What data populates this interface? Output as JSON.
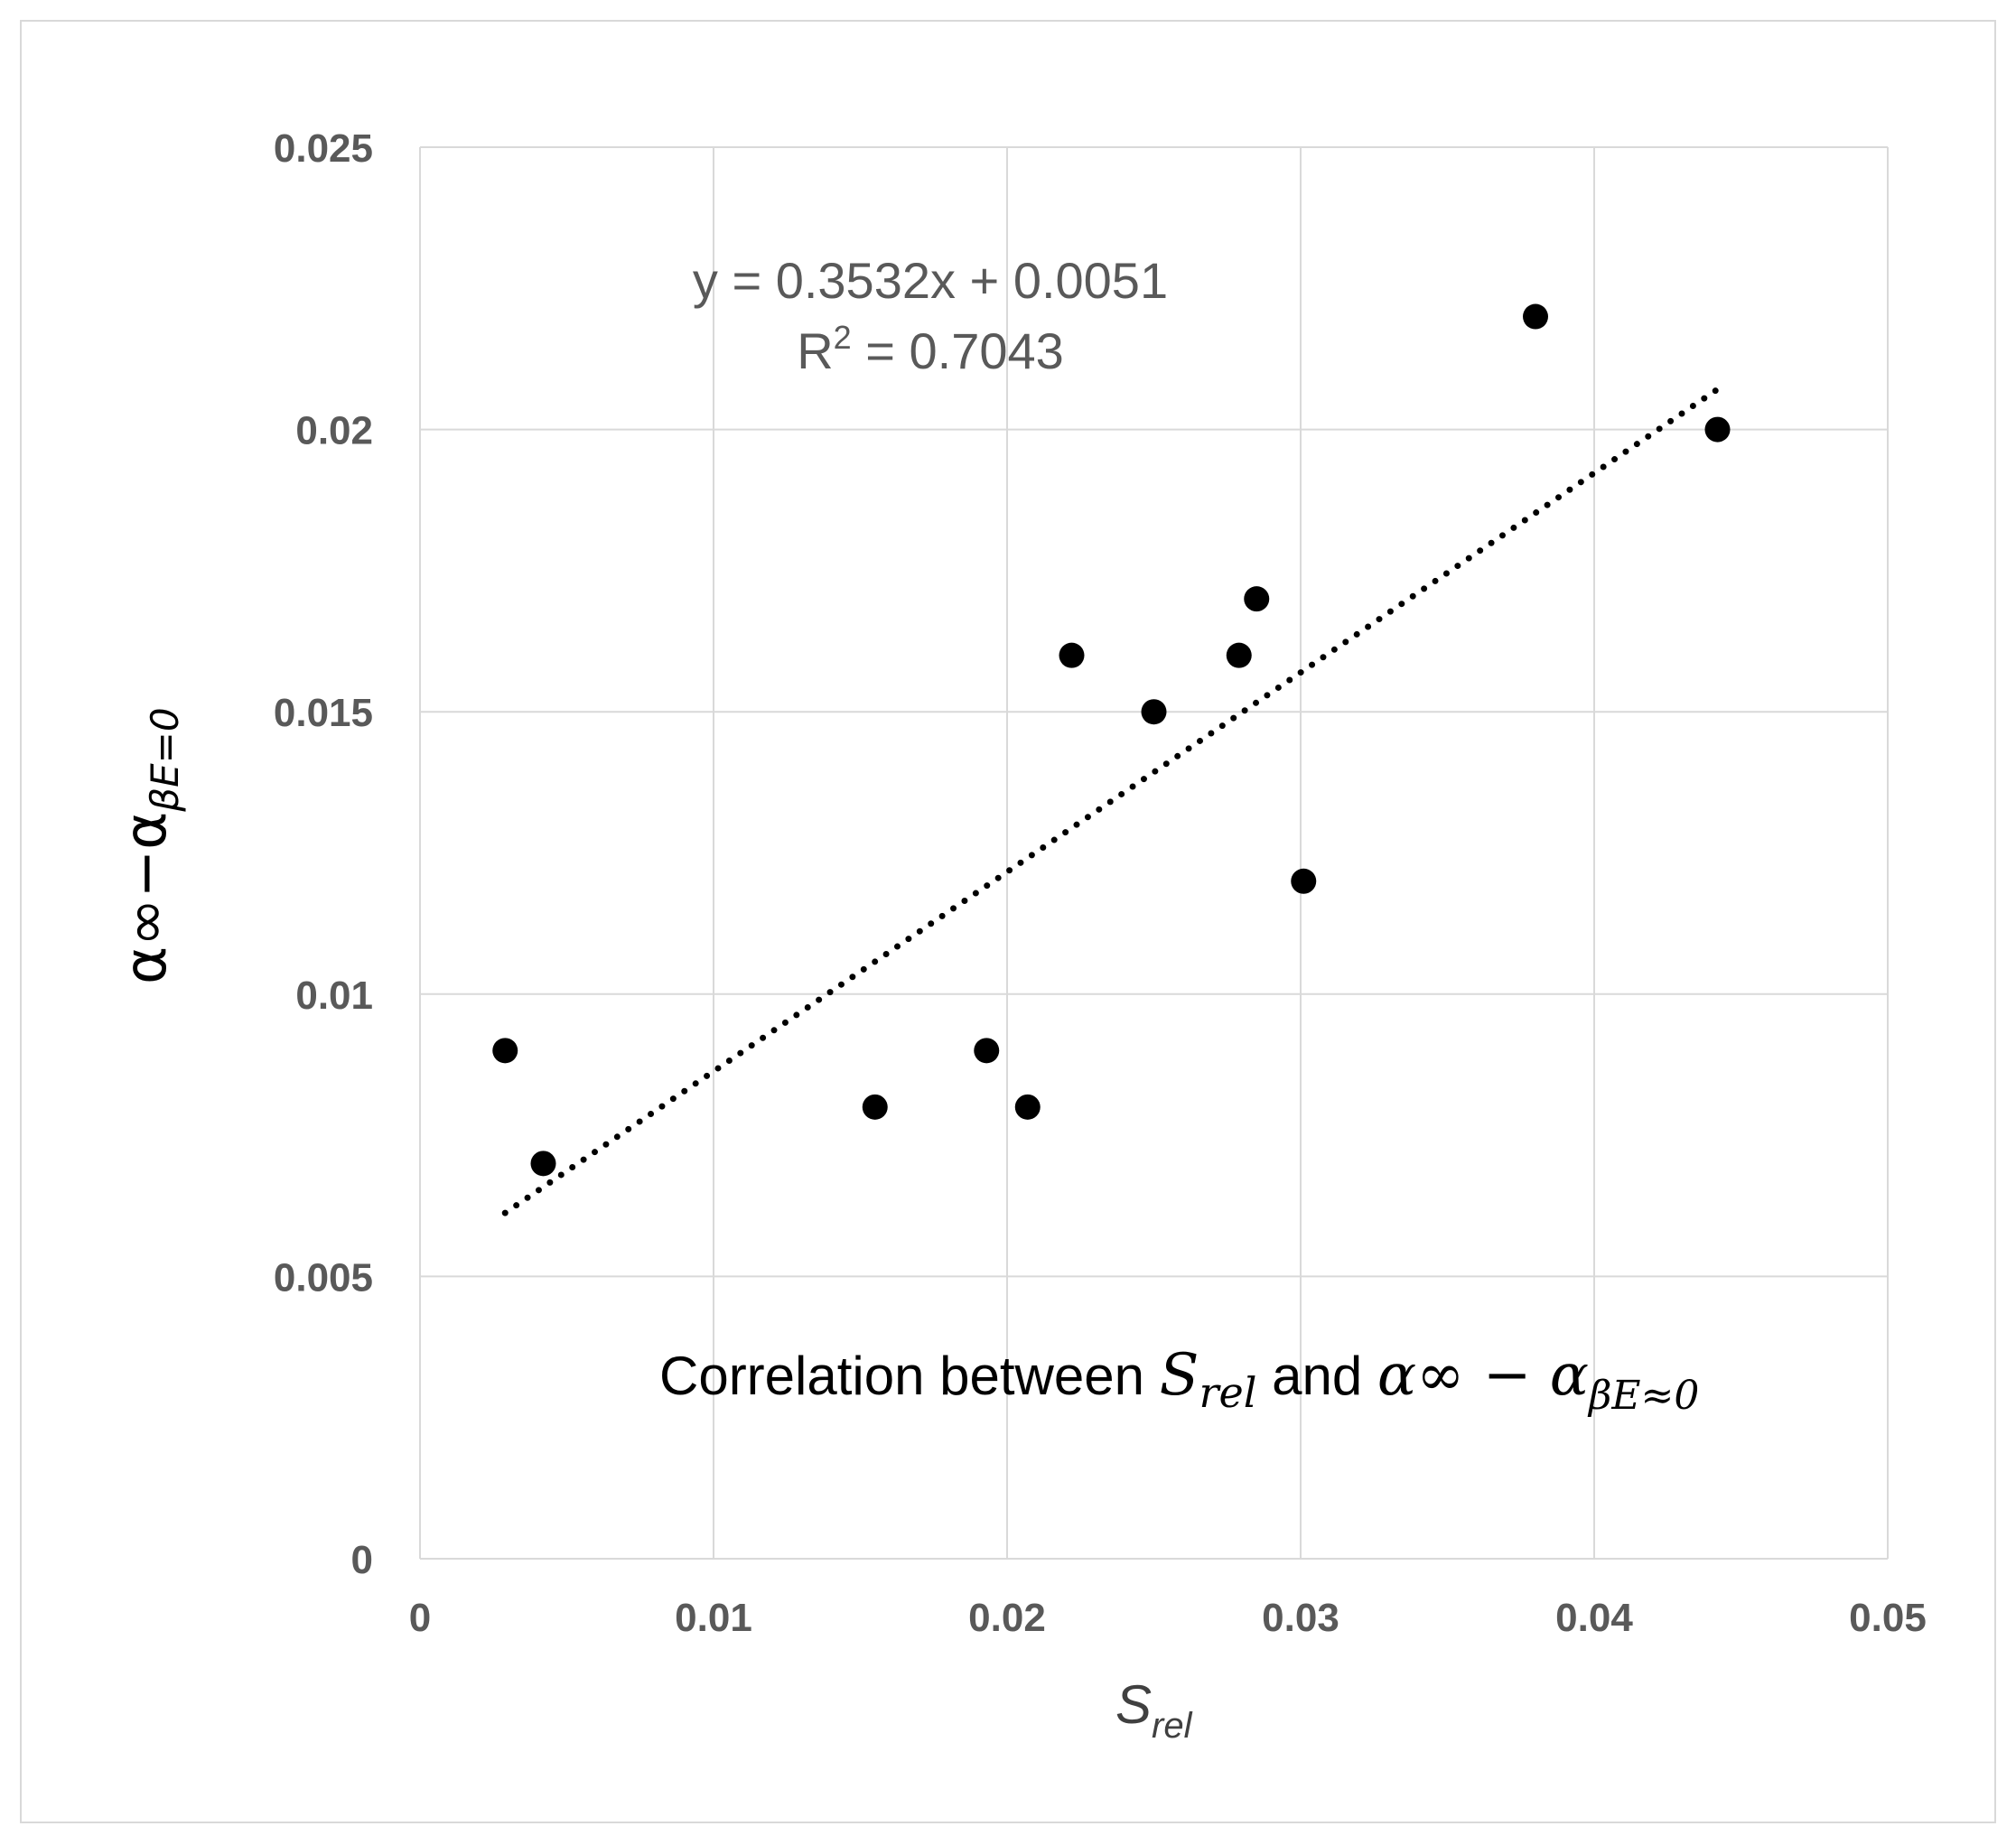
{
  "chart_data": {
    "type": "scatter",
    "title": "",
    "xlabel": {
      "base": "S",
      "sub": "rel"
    },
    "ylabel": {
      "base": "α∞−α",
      "sub": "βE=0"
    },
    "xlim": [
      0,
      0.05
    ],
    "ylim": [
      0,
      0.025
    ],
    "x_ticks": [
      0,
      0.01,
      0.02,
      0.03,
      0.04,
      0.05
    ],
    "x_tick_labels": [
      "0",
      "0.01",
      "0.02",
      "0.03",
      "0.04",
      "0.05"
    ],
    "y_ticks": [
      0,
      0.005,
      0.01,
      0.015,
      0.02,
      0.025
    ],
    "y_tick_labels": [
      "0",
      "0.005",
      "0.01",
      "0.015",
      "0.02",
      "0.025"
    ],
    "grid": true,
    "series": [
      {
        "name": "data",
        "marker": "circle",
        "color": "#000000",
        "points": [
          {
            "x": 0.0029,
            "y": 0.009
          },
          {
            "x": 0.0042,
            "y": 0.007
          },
          {
            "x": 0.0155,
            "y": 0.008
          },
          {
            "x": 0.0193,
            "y": 0.009
          },
          {
            "x": 0.0207,
            "y": 0.008
          },
          {
            "x": 0.0222,
            "y": 0.016
          },
          {
            "x": 0.025,
            "y": 0.015
          },
          {
            "x": 0.0279,
            "y": 0.016
          },
          {
            "x": 0.0285,
            "y": 0.017
          },
          {
            "x": 0.0301,
            "y": 0.012
          },
          {
            "x": 0.038,
            "y": 0.022
          },
          {
            "x": 0.0442,
            "y": 0.02
          }
        ]
      }
    ],
    "trendline": {
      "type": "linear",
      "slope": 0.3532,
      "intercept": 0.0051,
      "x_range": [
        0.0029,
        0.0442
      ],
      "style": "dotted",
      "color": "#000000",
      "equation_label": "y = 0.3532x + 0.0051",
      "r2_label_prefix": "R",
      "r2_label_sup": "2",
      "r2_label_suffix": " = 0.7043"
    },
    "annotation": {
      "prefix": "Correlation between ",
      "s_base": "S",
      "s_sub": "rel",
      "middle": " and ",
      "a_expr": "α∞ − α",
      "a_sub": "βE≈0"
    }
  },
  "colors": {
    "grid": "#d9d9d9",
    "tick_text": "#595959",
    "marker": "#000000",
    "frame": "#d9d9d9"
  }
}
